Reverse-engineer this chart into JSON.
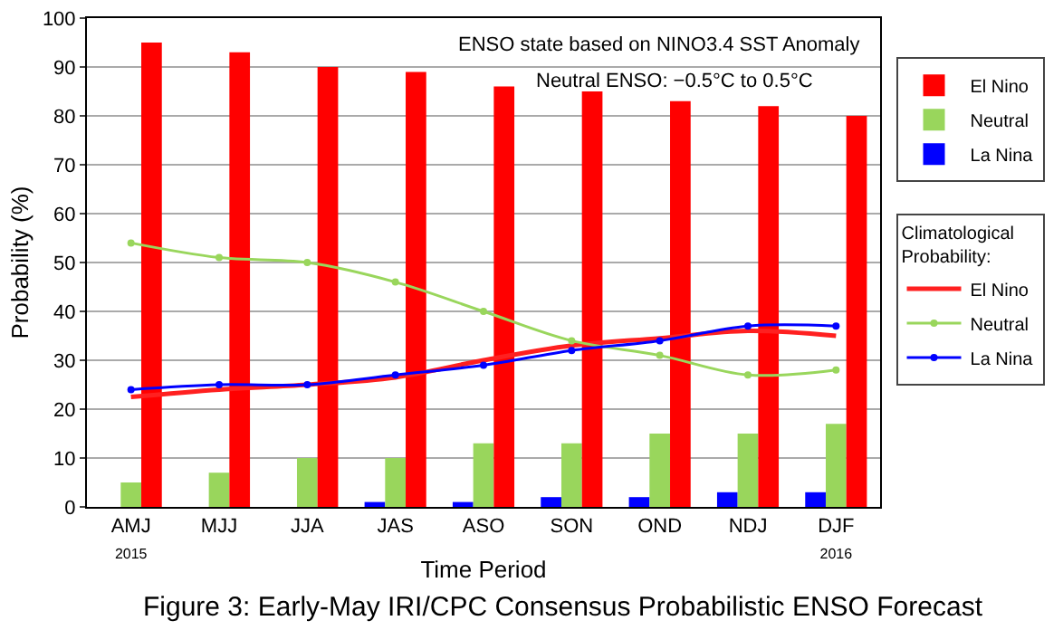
{
  "chart_data": {
    "type": "bar",
    "xlabel": "Time Period",
    "ylabel": "Probability (%)",
    "categories": [
      "AMJ\n2015",
      "MJJ",
      "JJA",
      "JAS",
      "ASO",
      "SON",
      "OND",
      "NDJ",
      "DJF\n2016"
    ],
    "series": [
      {
        "name": "El Nino",
        "color": "#ff0000",
        "values": [
          95,
          93,
          90,
          89,
          86,
          85,
          83,
          82,
          80
        ]
      },
      {
        "name": "Neutral",
        "color": "#99d65c",
        "values": [
          5,
          7,
          10,
          10,
          13,
          13,
          15,
          15,
          17
        ]
      },
      {
        "name": "La Nina",
        "color": "#0000ff",
        "values": [
          0,
          0,
          0,
          1,
          1,
          2,
          2,
          3,
          3
        ]
      },
      {
        "name": "El Nino",
        "type": "line",
        "color": "#ff2020",
        "marker": "none",
        "values": [
          22.5,
          24,
          25,
          26.5,
          30,
          33,
          34.5,
          36,
          35
        ]
      },
      {
        "name": "Neutral",
        "type": "line",
        "color": "#99d65c",
        "marker": "circle",
        "values": [
          54,
          51,
          50,
          46,
          40,
          34,
          31,
          27,
          28
        ]
      },
      {
        "name": "La Nina",
        "type": "line",
        "color": "#0000ff",
        "marker": "circle",
        "values": [
          24,
          25,
          25,
          27,
          29,
          32,
          34,
          37,
          37
        ]
      }
    ],
    "legend_title": "Climatological\nProbability:",
    "ylim": [
      0,
      100
    ],
    "yticks": [
      0,
      10,
      20,
      30,
      40,
      50,
      60,
      70,
      80,
      90,
      100
    ],
    "grid": "y",
    "legend": "right",
    "annotations": [
      "ENSO state based on NINO3.4 SST Anomaly",
      "Neutral ENSO: −0.5°C to 0.5°C",
      "Figure 3: Early-May IRI/CPC Consensus Probabilistic ENSO Forecast"
    ]
  }
}
